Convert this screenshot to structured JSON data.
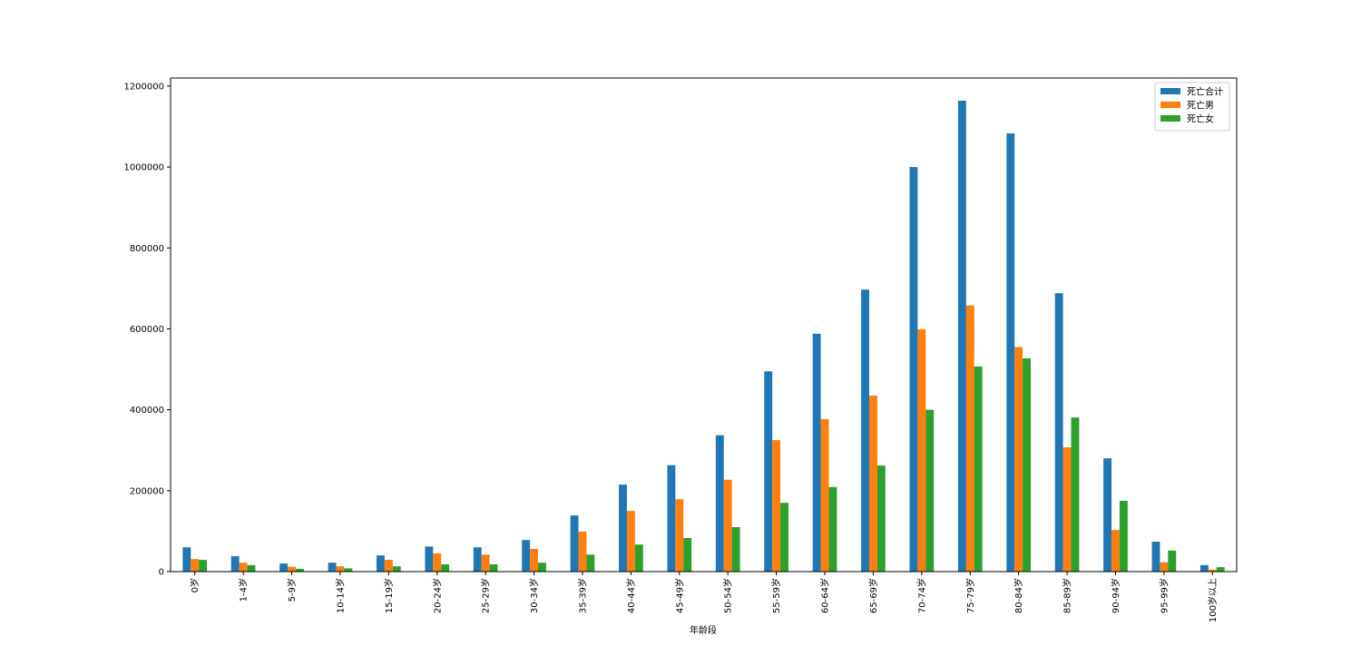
{
  "chart_data": {
    "type": "bar",
    "x_label": "年龄段",
    "categories": [
      "0岁",
      "1-4岁",
      "5-9岁",
      "10-14岁",
      "15-19岁",
      "20-24岁",
      "25-29岁",
      "30-34岁",
      "35-39岁",
      "40-44岁",
      "45-49岁",
      "50-54岁",
      "55-59岁",
      "60-64岁",
      "65-69岁",
      "70-74岁",
      "75-79岁",
      "80-84岁",
      "85-89岁",
      "90-94岁",
      "95-99岁",
      "100岁以上"
    ],
    "series": [
      {
        "name": "死亡合计",
        "color": "#1f77b4",
        "values": [
          60000,
          38000,
          20000,
          22000,
          40000,
          62000,
          60000,
          78000,
          139000,
          215000,
          263000,
          337000,
          495000,
          588000,
          697000,
          1000000,
          1164000,
          1083000,
          688000,
          280000,
          74000,
          16000
        ]
      },
      {
        "name": "死亡男",
        "color": "#ff7f0e",
        "values": [
          31000,
          22000,
          12000,
          13000,
          29000,
          45000,
          42000,
          56000,
          99000,
          150000,
          179000,
          227000,
          325000,
          377000,
          435000,
          599000,
          658000,
          555000,
          307000,
          103000,
          23000,
          5000
        ]
      },
      {
        "name": "死亡女",
        "color": "#2ca02c",
        "values": [
          29000,
          16000,
          7000,
          8000,
          13000,
          18000,
          18000,
          22000,
          42000,
          67000,
          83000,
          110000,
          170000,
          209000,
          262000,
          400000,
          507000,
          527000,
          381000,
          175000,
          52000,
          11000
        ]
      }
    ],
    "ylim": [
      0,
      1220000
    ],
    "yticks": [
      0,
      200000,
      400000,
      600000,
      800000,
      1000000,
      1200000
    ],
    "legend": "upper right"
  }
}
